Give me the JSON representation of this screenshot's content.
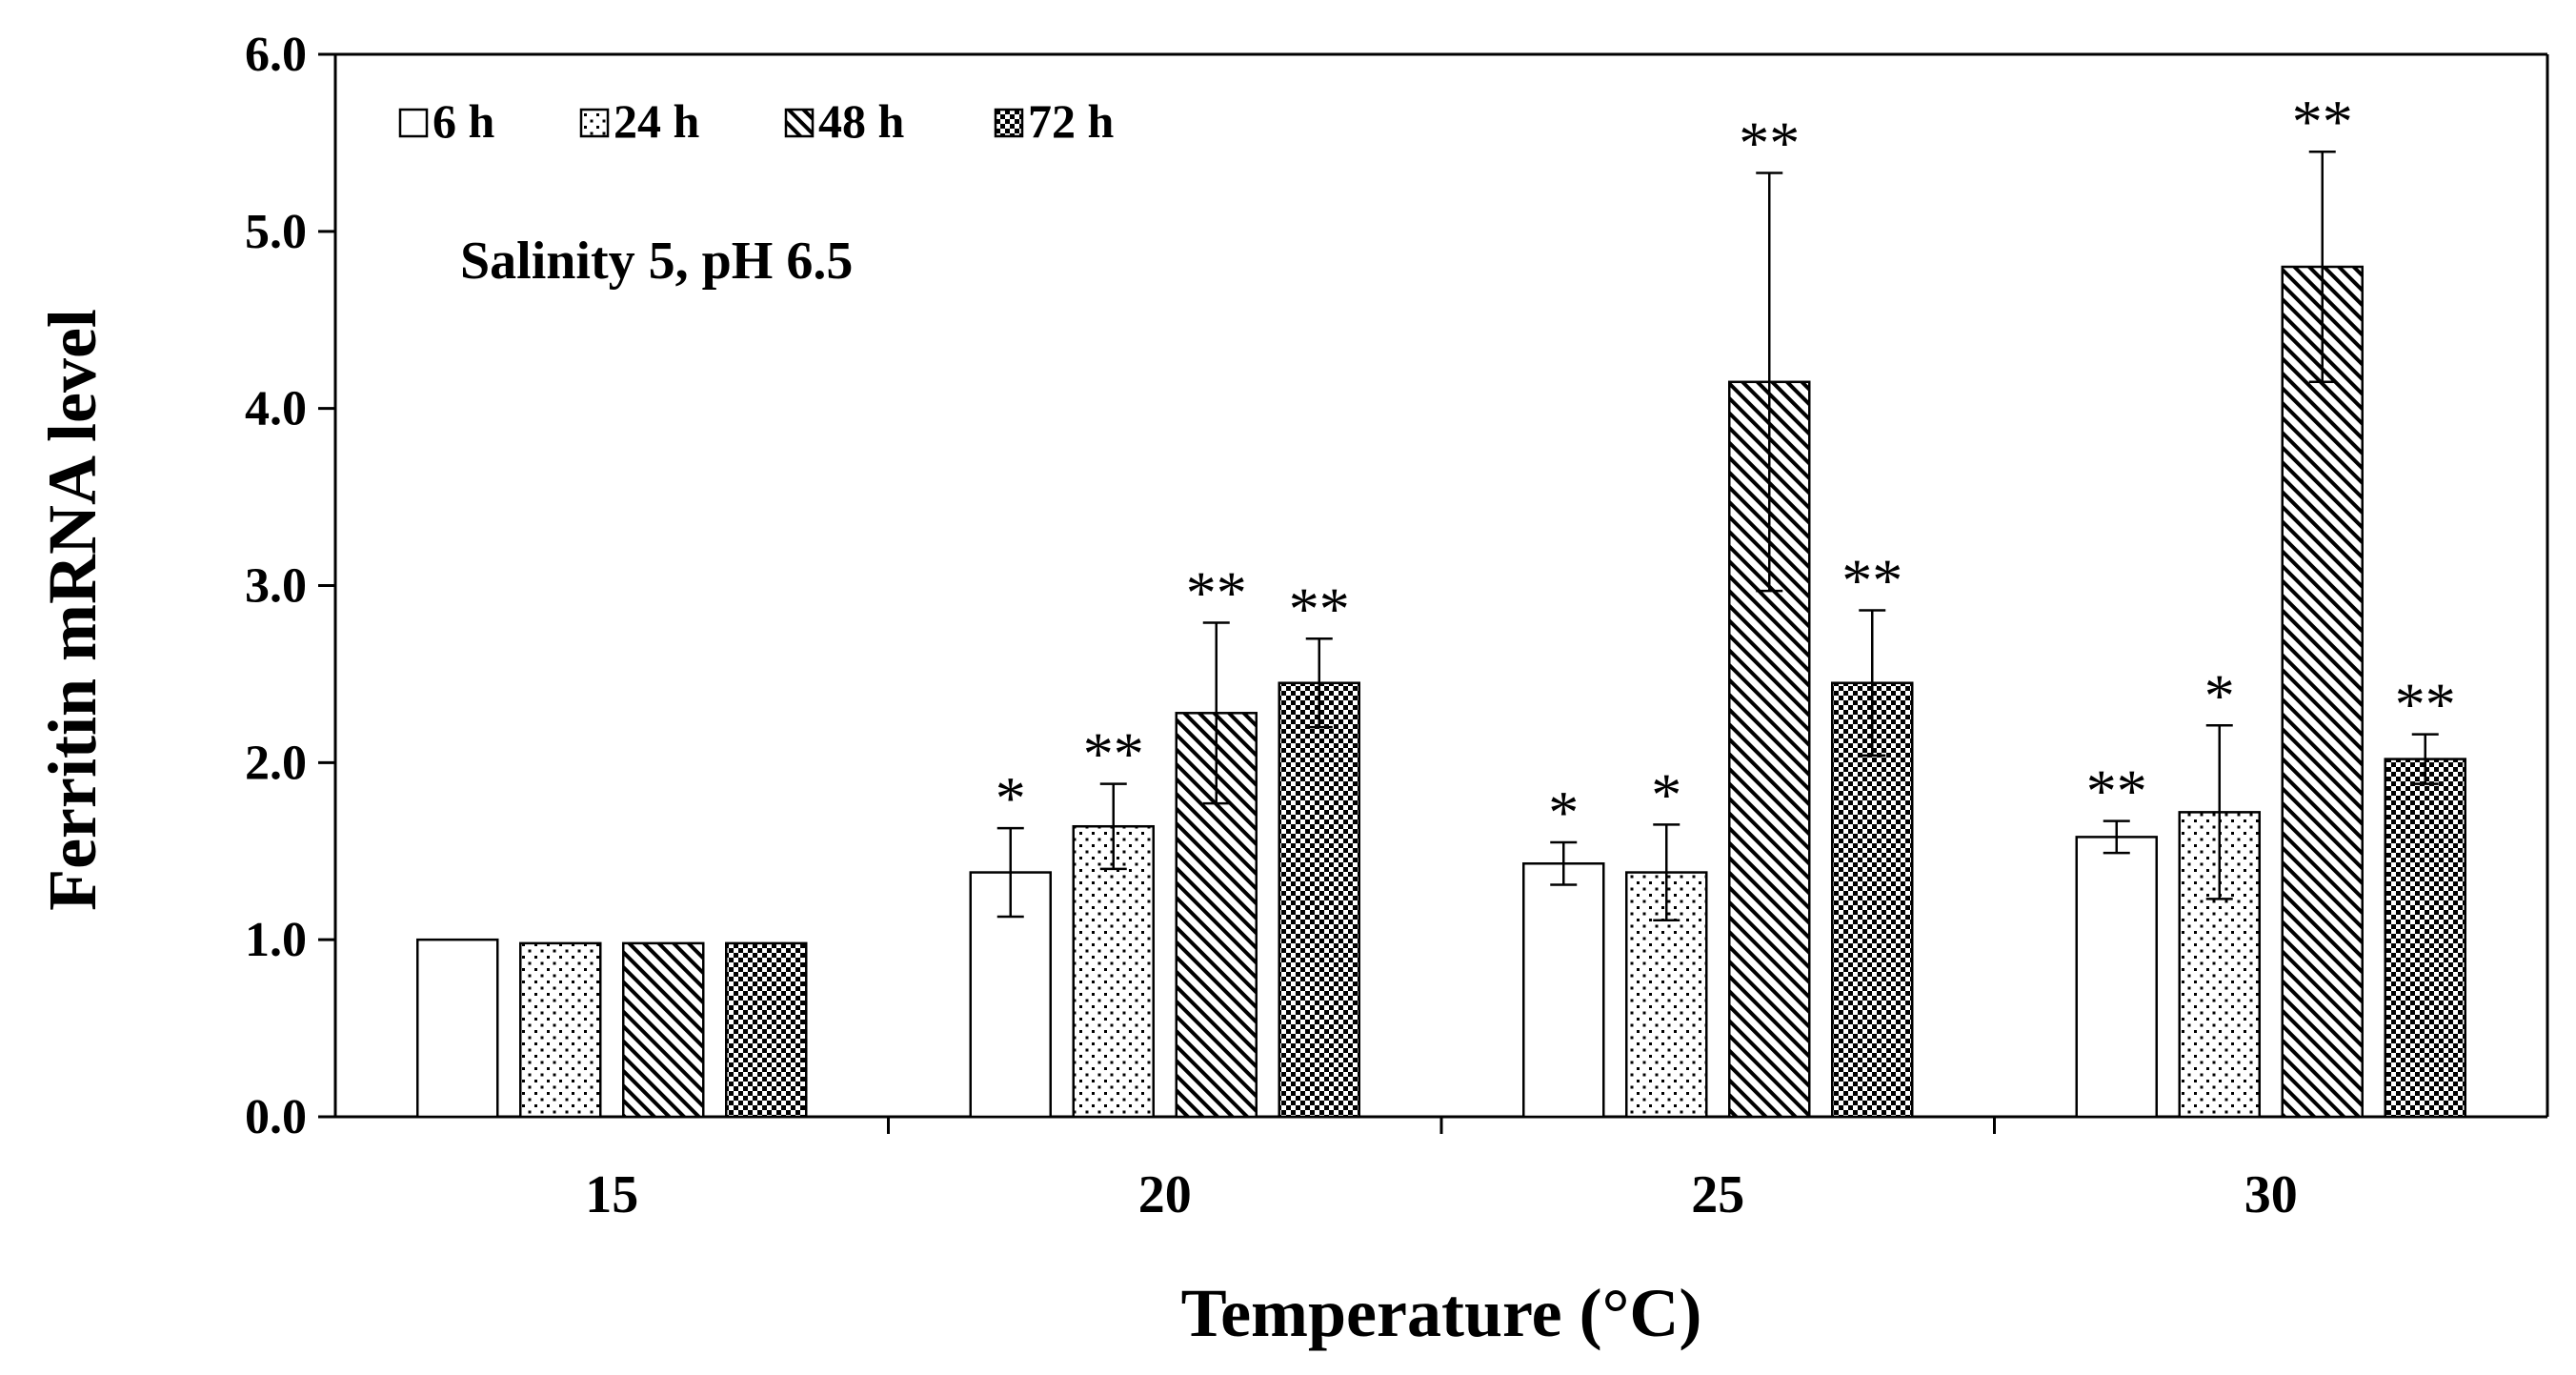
{
  "chart_data": {
    "type": "bar",
    "title": "",
    "annotation": "Salinity  5, pH  6.5",
    "xlabel": "Temperature (°C)",
    "ylabel": "Ferritin  mRNA  level",
    "ylim": [
      0,
      6
    ],
    "yticks": [
      "0.0",
      "1.0",
      "2.0",
      "3.0",
      "4.0",
      "5.0",
      "6.0"
    ],
    "categories": [
      "15",
      "20",
      "25",
      "30"
    ],
    "legend_position": "top-left",
    "series": [
      {
        "name": "6 h",
        "pattern": "blank",
        "values": [
          1.0,
          1.38,
          1.43,
          1.58
        ],
        "errors": [
          0.0,
          0.25,
          0.12,
          0.09
        ],
        "significance": [
          "",
          "*",
          "*",
          "**"
        ]
      },
      {
        "name": "24 h",
        "pattern": "dots",
        "values": [
          0.98,
          1.64,
          1.38,
          1.72
        ],
        "errors": [
          0.02,
          0.24,
          0.27,
          0.49
        ],
        "significance": [
          "",
          "**",
          "*",
          "*"
        ]
      },
      {
        "name": "48 h",
        "pattern": "hatch",
        "values": [
          0.98,
          2.28,
          4.15,
          4.8
        ],
        "errors": [
          0.02,
          0.51,
          1.18,
          0.65
        ],
        "significance": [
          "",
          "**",
          "**",
          "**"
        ]
      },
      {
        "name": "72 h",
        "pattern": "checker",
        "values": [
          0.98,
          2.45,
          2.45,
          2.02
        ],
        "errors": [
          0.02,
          0.25,
          0.41,
          0.14
        ],
        "significance": [
          "",
          "**",
          "**",
          "**"
        ]
      }
    ]
  },
  "colors": {
    "bar_stroke": "#000000",
    "background": "#ffffff"
  }
}
